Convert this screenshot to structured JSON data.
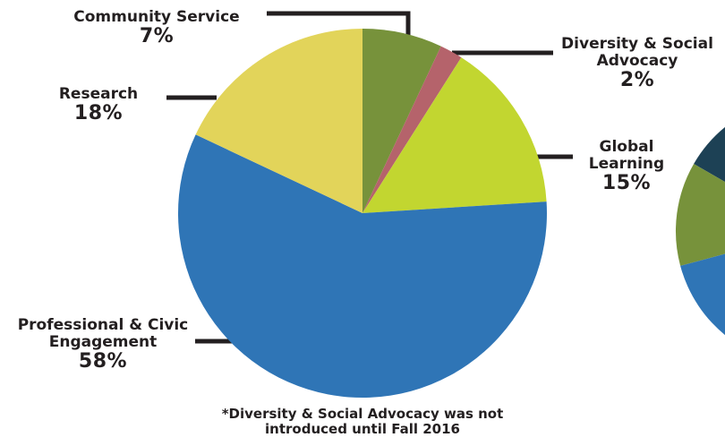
{
  "chart_data": {
    "type": "pie",
    "start": "12 o'clock",
    "direction": "clockwise",
    "slices": [
      {
        "label": "Community Service",
        "value": 7,
        "display": "7%",
        "color": "#77923b"
      },
      {
        "label": "Diversity & Social Advocacy",
        "value": 2,
        "display": "2%",
        "color": "#b5636b"
      },
      {
        "label": "Global Learning",
        "value": 15,
        "display": "15%",
        "color": "#c2d630"
      },
      {
        "label": "Professional & Civic Engagement",
        "value": 58,
        "display": "58%",
        "color": "#2f75b6"
      },
      {
        "label": "Research",
        "value": 18,
        "display": "18%",
        "color": "#e2d45a"
      }
    ],
    "footnote_line1": "*Diversity & Social Advocacy was not",
    "footnote_line2": "introduced until Fall 2016",
    "label_lines": {
      "community": [
        "Community Service"
      ],
      "diversity": [
        "Diversity & Social",
        "Advocacy"
      ],
      "global": [
        "Global",
        "Learning"
      ],
      "professional": [
        "Professional & Civic",
        "Engagement"
      ],
      "research": [
        "Research"
      ]
    },
    "partial_second_pie_colors": [
      "#1d4155",
      "#77923b",
      "#2f75b6"
    ],
    "leader_color": "#231f20"
  }
}
